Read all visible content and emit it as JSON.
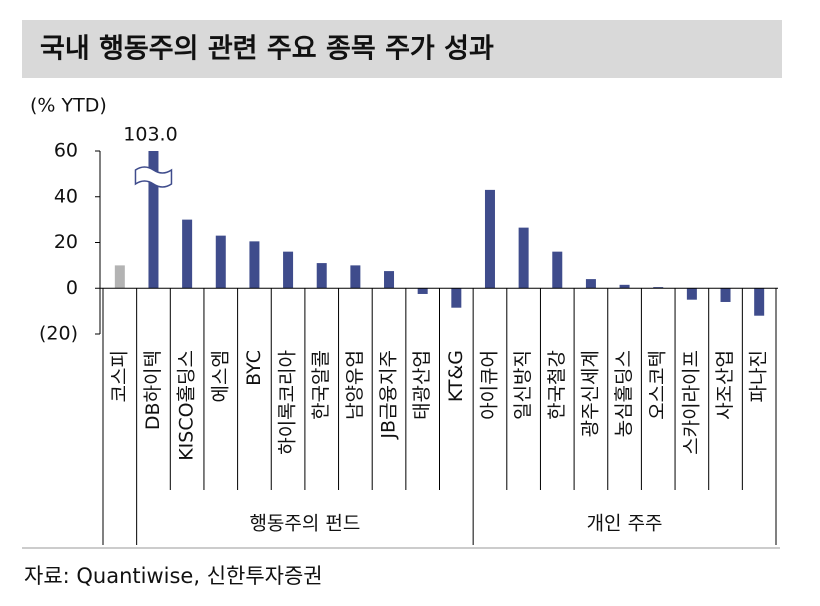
{
  "chart_data": {
    "type": "bar",
    "title": "국내 행동주의 관련 주요 종목 주가 성과",
    "y_axis_label": "(% YTD)",
    "categories": [
      "코스피",
      "DB하이텍",
      "KISCO홀딩스",
      "에스엠",
      "BYC",
      "하이록코리아",
      "한국알콜",
      "남양유업",
      "JB금융지주",
      "태광산업",
      "KT&G",
      "아이큐어",
      "일신방직",
      "한국철강",
      "광주신세계",
      "농심홀딩스",
      "오스코텍",
      "스카이라이프",
      "사조산업",
      "파나진"
    ],
    "values": [
      10,
      103.0,
      30,
      23,
      20.5,
      16,
      11,
      10,
      7.5,
      -2.5,
      -8.5,
      43,
      26.5,
      16,
      4,
      1.5,
      0.5,
      -5,
      -6,
      -12
    ],
    "value_labels": [
      null,
      "103.0",
      null,
      null,
      null,
      null,
      null,
      null,
      null,
      null,
      null,
      null,
      null,
      null,
      null,
      null,
      null,
      null,
      null,
      null
    ],
    "colors": [
      "#b3b3b3",
      "#3f4c8c",
      "#3f4c8c",
      "#3f4c8c",
      "#3f4c8c",
      "#3f4c8c",
      "#3f4c8c",
      "#3f4c8c",
      "#3f4c8c",
      "#3f4c8c",
      "#3f4c8c",
      "#3f4c8c",
      "#3f4c8c",
      "#3f4c8c",
      "#3f4c8c",
      "#3f4c8c",
      "#3f4c8c",
      "#3f4c8c",
      "#3f4c8c",
      "#3f4c8c"
    ],
    "groups": [
      {
        "label": "행동주의 펀드",
        "from": 1,
        "to": 10
      },
      {
        "label": "개인 주주",
        "from": 11,
        "to": 19
      }
    ],
    "ylim": [
      -20,
      60
    ],
    "yticks": [
      {
        "value": -20,
        "label": "(20)"
      },
      0,
      20,
      40,
      60
    ],
    "source": "자료: Quantiwise, 신한투자증권"
  }
}
